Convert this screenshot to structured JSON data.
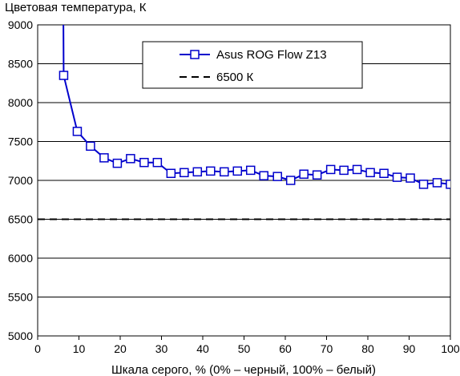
{
  "chart_data": {
    "type": "line",
    "title": "",
    "ylabel": "Цветовая температура, К",
    "xlabel": "Шкала серого, % (0% – черный, 100% – белый)",
    "xlim": [
      0,
      100
    ],
    "ylim": [
      5000,
      9000
    ],
    "x_ticks": [
      0,
      10,
      20,
      30,
      40,
      50,
      60,
      70,
      80,
      90,
      100
    ],
    "y_ticks": [
      5000,
      5500,
      6000,
      6500,
      7000,
      7500,
      8000,
      8500,
      9000
    ],
    "grid": "horizontal",
    "legend_position": "top-right",
    "colors": {
      "series": "#0000cc",
      "reference": "#000000",
      "grid": "#000000"
    },
    "series": [
      {
        "name": "Asus ROG Flow Z13",
        "style": "solid-line-square-markers",
        "x": [
          6.3,
          9.6,
          12.8,
          16.1,
          19.3,
          22.5,
          25.8,
          29,
          32.3,
          35.5,
          38.7,
          41.9,
          45.2,
          48.4,
          51.6,
          54.8,
          58.1,
          61.3,
          64.5,
          67.7,
          71,
          74.2,
          77.4,
          80.6,
          83.9,
          87.1,
          90.3,
          93.5,
          96.8,
          100
        ],
        "y": [
          8350,
          7630,
          7440,
          7290,
          7220,
          7280,
          7230,
          7230,
          7090,
          7100,
          7110,
          7120,
          7110,
          7120,
          7130,
          7060,
          7050,
          7000,
          7080,
          7070,
          7140,
          7130,
          7140,
          7100,
          7090,
          7040,
          7030,
          6950,
          6970,
          6950
        ],
        "x_offscale_start": 6.2,
        "y_offscale_start": 9400
      },
      {
        "name": "6500 К",
        "style": "dashed-line",
        "x": [
          0,
          100
        ],
        "y": [
          6500,
          6500
        ]
      }
    ]
  }
}
